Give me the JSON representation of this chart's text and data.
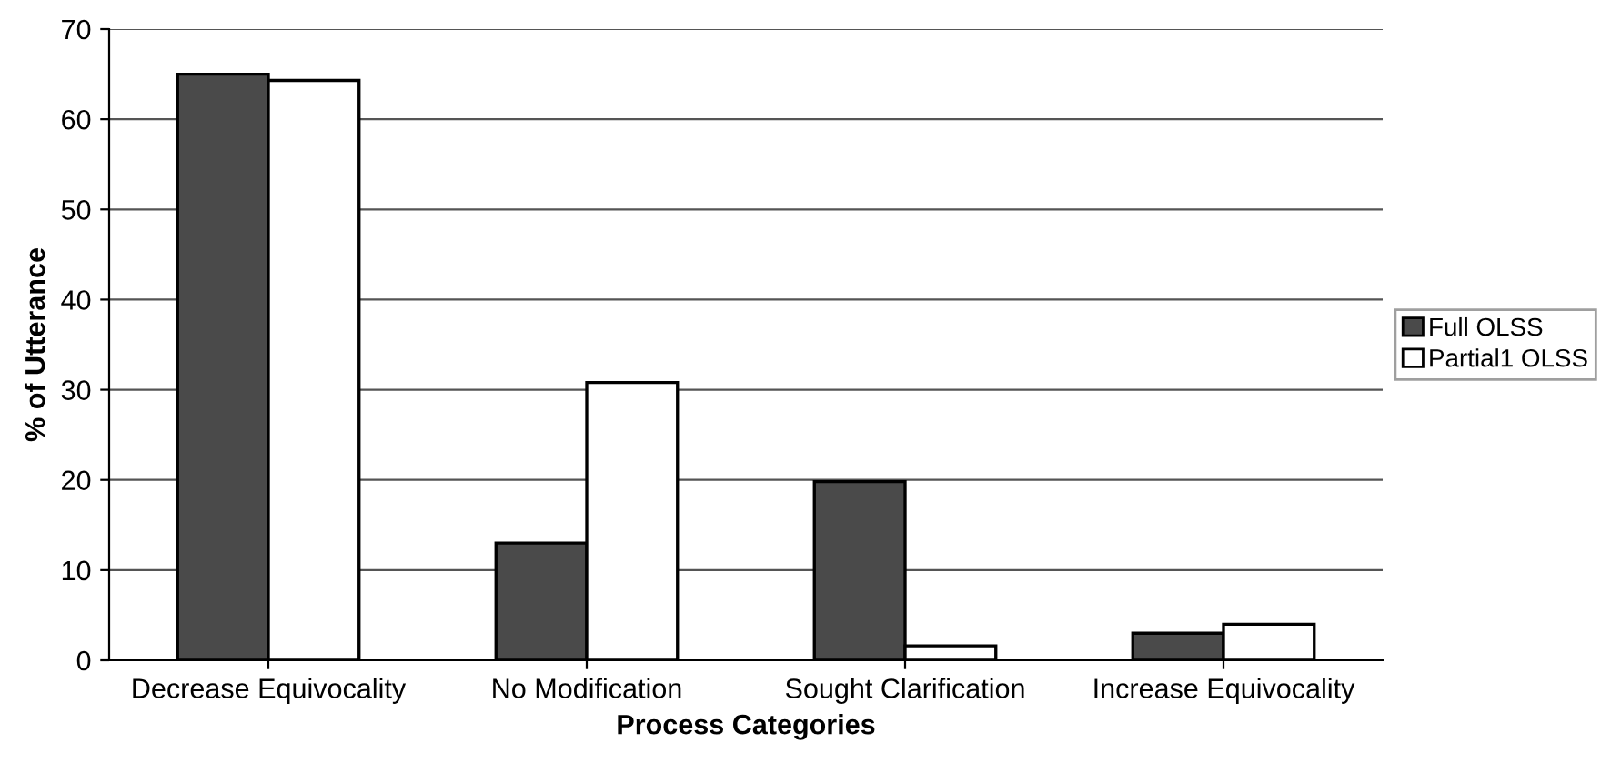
{
  "chart_data": {
    "type": "bar",
    "xlabel": "Process Categories",
    "ylabel": "% of Utterance",
    "categories": [
      "Decrease Equivocality",
      "No Modification",
      "Sought Clarification",
      "Increase Equivocality"
    ],
    "series": [
      {
        "name": "Full OLSS",
        "color": "#4a4a4a",
        "values": [
          65,
          13,
          19.8,
          3
        ]
      },
      {
        "name": "Partial1 OLSS",
        "color": "#ffffff",
        "values": [
          64.3,
          30.8,
          1.6,
          4
        ]
      }
    ],
    "ylim": [
      0,
      70
    ],
    "yticks": [
      0,
      10,
      20,
      30,
      40,
      50,
      60,
      70
    ],
    "grid": "y",
    "legend": "right"
  }
}
